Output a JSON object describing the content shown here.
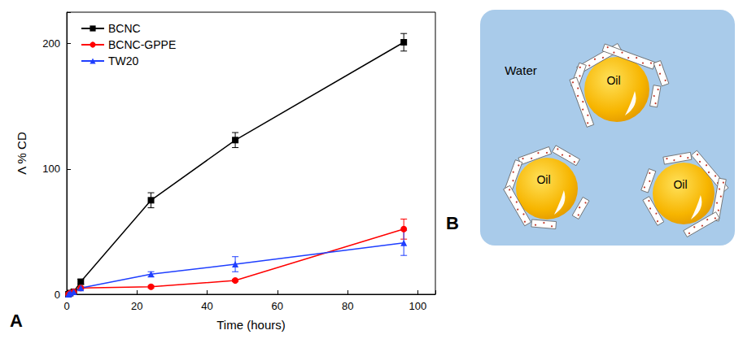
{
  "chart_data": {
    "type": "line",
    "annotations": [
      "A"
    ],
    "x_label": "Time (hours)",
    "y_label": "Λ % CD",
    "x": [
      0.5,
      1,
      2,
      4,
      24,
      48,
      96
    ],
    "series": [
      {
        "name": "BCNC",
        "color": "#000000",
        "marker": "square",
        "values": [
          0,
          1,
          2,
          10,
          75,
          123,
          201
        ],
        "errors": [
          null,
          null,
          null,
          2,
          6,
          6,
          7
        ]
      },
      {
        "name": "BCNC-GPPE",
        "color": "#ff0000",
        "marker": "circle",
        "values": [
          0,
          1,
          2,
          5,
          6,
          11,
          52
        ],
        "errors": [
          null,
          null,
          null,
          1,
          1,
          1,
          8
        ]
      },
      {
        "name": "TW20",
        "color": "#1f3fff",
        "marker": "triangle",
        "values": [
          0,
          1,
          2,
          5,
          16,
          24,
          41
        ],
        "errors": [
          null,
          null,
          null,
          1,
          2,
          6,
          10
        ]
      }
    ],
    "xlim": [
      0,
      105
    ],
    "ylim": [
      0,
      225
    ],
    "xticks": [
      0,
      20,
      40,
      60,
      80,
      100
    ],
    "yticks": [
      0,
      100,
      200
    ],
    "grid": false,
    "legend": "upper left"
  },
  "diagram": {
    "label": "B",
    "medium": "Water",
    "droplets": [
      "Oil",
      "Oil",
      "Oil"
    ]
  }
}
